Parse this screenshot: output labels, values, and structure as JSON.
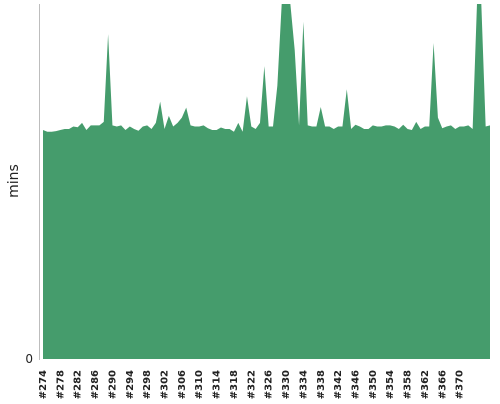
{
  "chart_data": {
    "type": "area",
    "title": "",
    "xlabel": "",
    "ylabel": "mins",
    "y_tick_labels": [
      "0"
    ],
    "ylim": [
      0,
      100
    ],
    "x_start_label": "#274",
    "x_step": 1,
    "x_tick_labels": [
      "#274",
      "#278",
      "#282",
      "#286",
      "#290",
      "#294",
      "#298",
      "#302",
      "#306",
      "#310",
      "#314",
      "#318",
      "#322",
      "#326",
      "#330",
      "#334",
      "#338",
      "#342",
      "#346",
      "#350",
      "#354",
      "#358",
      "#362",
      "#366",
      "#370"
    ],
    "grid": false,
    "legend": "none",
    "color": "#459C6C",
    "values": [
      64.5,
      64.0,
      64.0,
      64.2,
      64.5,
      64.8,
      64.8,
      65.5,
      65.3,
      66.5,
      64.5,
      65.8,
      65.8,
      65.8,
      66.8,
      91.5,
      65.8,
      65.5,
      65.8,
      64.5,
      65.5,
      64.8,
      64.3,
      65.5,
      65.8,
      64.8,
      66.5,
      72.5,
      64.8,
      68.5,
      65.5,
      66.5,
      68.0,
      70.8,
      65.8,
      65.5,
      65.5,
      65.8,
      65.0,
      64.5,
      64.5,
      65.2,
      64.8,
      64.8,
      64.0,
      66.5,
      64.0,
      74.0,
      65.5,
      64.8,
      66.5,
      82.5,
      65.5,
      65.5,
      77.0,
      100.0,
      100.0,
      100.0,
      87.0,
      65.8,
      95.0,
      65.8,
      65.5,
      65.5,
      71.0,
      65.5,
      65.5,
      64.8,
      65.5,
      65.5,
      76.0,
      64.8,
      66.0,
      65.5,
      64.8,
      64.8,
      65.8,
      65.5,
      65.5,
      65.8,
      65.8,
      65.5,
      64.8,
      66.0,
      64.8,
      64.5,
      66.8,
      64.8,
      65.5,
      65.5,
      89.0,
      68.0,
      65.0,
      65.5,
      65.8,
      64.8,
      65.5,
      65.5,
      65.8,
      64.8,
      100.0,
      100.0,
      65.5,
      65.8
    ]
  }
}
